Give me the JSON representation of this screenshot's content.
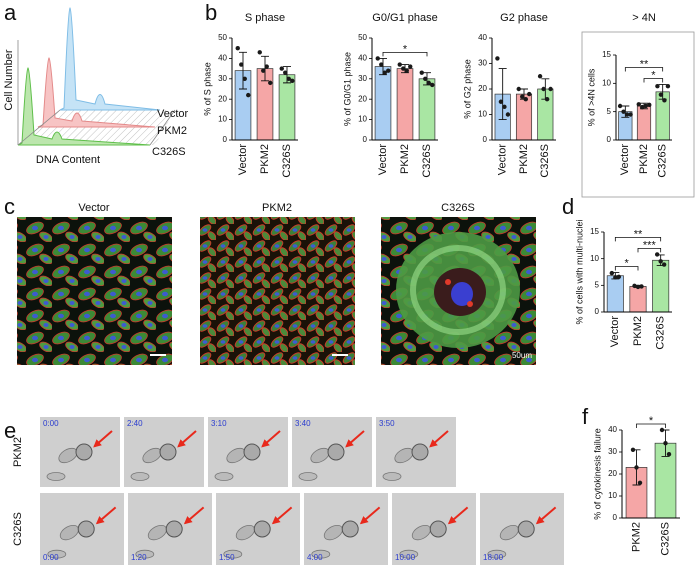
{
  "panel_labels": [
    "a",
    "b",
    "c",
    "d",
    "e",
    "f"
  ],
  "panel_a": {
    "y_label": "Cell Number",
    "x_label": "DNA Content",
    "series": [
      "Vector",
      "PKM2",
      "C326S"
    ]
  },
  "panel_c": {
    "titles": [
      "Vector",
      "PKM2",
      "C326S"
    ],
    "scale_bar": "50um"
  },
  "panel_e": {
    "rows": [
      {
        "label": "PKM2",
        "times": [
          "0:00",
          "2:40",
          "3:10",
          "3:40",
          "3:50"
        ]
      },
      {
        "label": "C326S",
        "times": [
          "0:00",
          "1:20",
          "1:50",
          "4:00",
          "10:00",
          "18:00"
        ]
      }
    ]
  },
  "chart_data": [
    {
      "type": "bar",
      "title": "S phase",
      "y_label": "% of S phase",
      "categories": [
        "Vector",
        "PKM2",
        "C326S"
      ],
      "colors": [
        "#a9cdf2",
        "#f5a6a6",
        "#a9e6a3"
      ],
      "values": [
        34,
        35,
        32
      ],
      "errors": [
        9,
        6,
        4
      ],
      "points": [
        [
          45,
          37,
          30,
          22
        ],
        [
          43,
          34,
          36,
          28
        ],
        [
          35,
          33,
          30,
          29
        ]
      ],
      "ylim": [
        0,
        50
      ],
      "yticks": [
        0,
        10,
        20,
        30,
        40,
        50
      ],
      "significance": []
    },
    {
      "type": "bar",
      "title": "G0/G1 phase",
      "y_label": "% of G0/G1 phase",
      "categories": [
        "Vector",
        "PKM2",
        "C326S"
      ],
      "colors": [
        "#a9cdf2",
        "#f5a6a6",
        "#a9e6a3"
      ],
      "values": [
        36,
        35,
        30
      ],
      "errors": [
        4,
        2,
        3
      ],
      "points": [
        [
          40,
          37,
          33,
          34
        ],
        [
          37,
          35,
          34,
          36
        ],
        [
          33,
          30,
          28,
          27
        ]
      ],
      "ylim": [
        0,
        50
      ],
      "yticks": [
        0,
        10,
        20,
        30,
        40,
        50
      ],
      "significance": [
        {
          "between": [
            "Vector",
            "C326S"
          ],
          "label": "*"
        }
      ]
    },
    {
      "type": "bar",
      "title": "G2 phase",
      "y_label": "% of G2 phase",
      "categories": [
        "Vector",
        "PKM2",
        "C326S"
      ],
      "colors": [
        "#a9cdf2",
        "#f5a6a6",
        "#a9e6a3"
      ],
      "values": [
        18,
        18,
        20
      ],
      "errors": [
        10,
        2,
        4
      ],
      "points": [
        [
          32,
          15,
          13,
          10
        ],
        [
          20,
          17,
          16,
          18
        ],
        [
          25,
          20,
          16,
          20
        ]
      ],
      "ylim": [
        0,
        40
      ],
      "yticks": [
        0,
        10,
        20,
        30,
        40
      ],
      "significance": []
    },
    {
      "type": "bar",
      "title": "> 4N",
      "y_label": "% of >4N cells",
      "categories": [
        "Vector",
        "PKM2",
        "C326S"
      ],
      "colors": [
        "#a9cdf2",
        "#f5a6a6",
        "#a9e6a3"
      ],
      "values": [
        5,
        6,
        8.5
      ],
      "errors": [
        1,
        0.5,
        1.3
      ],
      "points": [
        [
          6,
          5,
          4.5,
          4.5
        ],
        [
          6.3,
          5.8,
          6,
          6.2
        ],
        [
          9.5,
          8,
          7,
          9.5
        ]
      ],
      "ylim": [
        0,
        15
      ],
      "yticks": [
        0,
        5,
        10,
        15
      ],
      "significance": [
        {
          "between": [
            "PKM2",
            "C326S"
          ],
          "label": "*"
        },
        {
          "between": [
            "Vector",
            "C326S"
          ],
          "label": "**"
        }
      ]
    },
    {
      "type": "bar",
      "y_label": "% of cells with multi-nuclei",
      "categories": [
        "Vector",
        "PKM2",
        "C326S"
      ],
      "colors": [
        "#a9cdf2",
        "#f5a6a6",
        "#a9e6a3"
      ],
      "values": [
        6.8,
        4.8,
        9.7
      ],
      "errors": [
        0.6,
        0.2,
        1
      ],
      "points": [
        [
          7.3,
          6.5,
          6.6
        ],
        [
          4.9,
          4.7,
          4.8
        ],
        [
          10.8,
          9.5,
          8.9
        ]
      ],
      "ylim": [
        0,
        15
      ],
      "yticks": [
        0,
        5,
        10,
        15
      ],
      "significance": [
        {
          "between": [
            "Vector",
            "PKM2"
          ],
          "label": "*"
        },
        {
          "between": [
            "PKM2",
            "C326S"
          ],
          "label": "***"
        },
        {
          "between": [
            "Vector",
            "C326S"
          ],
          "label": "**"
        }
      ]
    },
    {
      "type": "bar",
      "y_label": "% of cytokinesis failure",
      "categories": [
        "PKM2",
        "C326S"
      ],
      "colors": [
        "#f5a6a6",
        "#a9e6a3"
      ],
      "values": [
        23,
        34
      ],
      "errors": [
        8,
        6
      ],
      "points": [
        [
          31,
          23,
          16
        ],
        [
          40,
          34,
          29
        ]
      ],
      "ylim": [
        0,
        40
      ],
      "yticks": [
        0,
        10,
        20,
        30,
        40
      ],
      "significance": [
        {
          "between": [
            "PKM2",
            "C326S"
          ],
          "label": "*"
        }
      ]
    }
  ]
}
